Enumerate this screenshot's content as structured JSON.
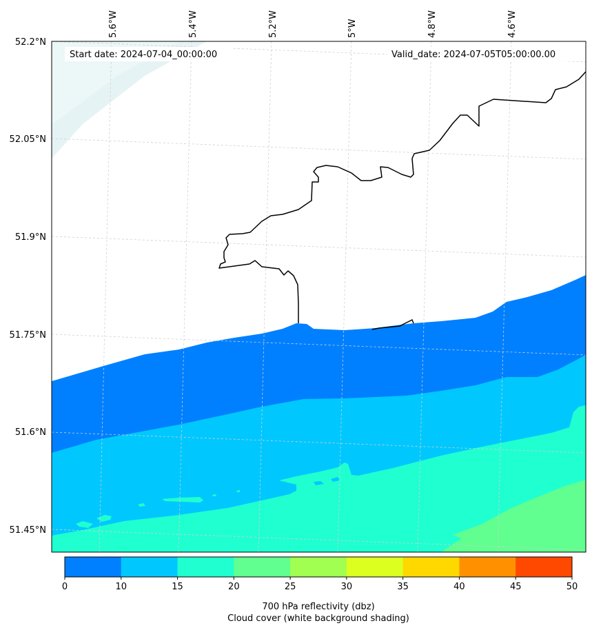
{
  "map": {
    "start_date_label": "Start date: 2024-07-04_00:00:00",
    "valid_date_label": "Valid_date: 2024-07-05T05:00:00.00",
    "lon_labels": [
      "5.6°W",
      "5.4°W",
      "5.2°W",
      "5°W",
      "4.8°W",
      "4.6°W"
    ],
    "lat_labels": [
      "52.2°N",
      "52.05°N",
      "51.9°N",
      "51.75°N",
      "51.6°N",
      "51.45°N"
    ],
    "colors": {
      "band_0_10": "#0080ff",
      "band_10_15": "#00c8ff",
      "band_15_20": "#20ffd0",
      "band_20_25": "#60ff90",
      "cloud_tint": "#e6f3f5",
      "coast": "#000000",
      "grid": "#cfcfcf"
    }
  },
  "colorbar": {
    "ticks": [
      "0",
      "10",
      "15",
      "20",
      "25",
      "30",
      "35",
      "40",
      "45",
      "50"
    ],
    "colors": [
      "#0080ff",
      "#00c8ff",
      "#20ffd0",
      "#60ff90",
      "#a0ff50",
      "#dcff20",
      "#ffd800",
      "#ff9000",
      "#ff4800"
    ],
    "label_line1": "700 hPa reflectivity (dbz)",
    "label_line2": "Cloud cover (white background shading)"
  }
}
